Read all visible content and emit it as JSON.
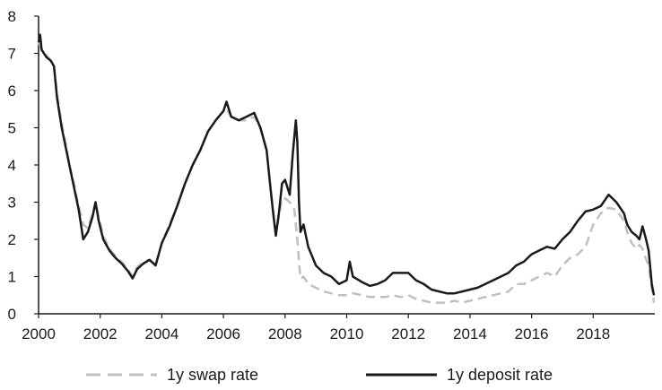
{
  "chart_data": {
    "type": "line",
    "title": "",
    "xlabel": "",
    "ylabel": "",
    "xlim": [
      2000,
      2020
    ],
    "ylim": [
      0,
      8
    ],
    "x_ticks": [
      2000,
      2002,
      2004,
      2006,
      2008,
      2010,
      2012,
      2014,
      2016,
      2018
    ],
    "y_ticks": [
      0,
      1,
      2,
      3,
      4,
      5,
      6,
      7,
      8
    ],
    "grid": false,
    "legend_position": "bottom",
    "series": [
      {
        "name": "1y swap rate",
        "color": "#c0c0c0",
        "style": "dashed",
        "x": [
          2000.0,
          2000.1,
          2000.25,
          2000.4,
          2000.5,
          2000.6,
          2000.75,
          2000.9,
          2001.0,
          2001.15,
          2001.3,
          2001.45,
          2001.6,
          2001.75,
          2001.85,
          2001.95,
          2002.1,
          2002.3,
          2002.5,
          2002.7,
          2002.9,
          2003.05,
          2003.2,
          2003.4,
          2003.6,
          2003.8,
          2004.0,
          2004.25,
          2004.5,
          2004.75,
          2005.0,
          2005.25,
          2005.5,
          2005.75,
          2006.0,
          2006.1,
          2006.25,
          2006.5,
          2006.75,
          2007.0,
          2007.2,
          2007.4,
          2007.5,
          2007.6,
          2007.7,
          2007.8,
          2007.9,
          2008.0,
          2008.15,
          2008.3,
          2008.4,
          2008.45,
          2008.5,
          2008.6,
          2008.75,
          2009.0,
          2009.25,
          2009.5,
          2009.75,
          2010.0,
          2010.2,
          2010.5,
          2010.75,
          2011.0,
          2011.25,
          2011.5,
          2011.75,
          2012.0,
          2012.25,
          2012.5,
          2012.75,
          2013.0,
          2013.25,
          2013.5,
          2013.75,
          2014.0,
          2014.25,
          2014.5,
          2014.75,
          2015.0,
          2015.25,
          2015.5,
          2015.75,
          2016.0,
          2016.25,
          2016.5,
          2016.75,
          2017.0,
          2017.25,
          2017.5,
          2017.75,
          2018.0,
          2018.25,
          2018.5,
          2018.75,
          2019.0,
          2019.1,
          2019.25,
          2019.4,
          2019.5,
          2019.6,
          2019.7,
          2019.8,
          2019.9,
          2019.97
        ],
        "y": [
          7.3,
          7.1,
          6.95,
          6.8,
          6.65,
          5.9,
          5.1,
          4.5,
          4.0,
          3.5,
          2.9,
          2.4,
          2.3,
          2.7,
          3.0,
          2.6,
          2.1,
          1.75,
          1.55,
          1.4,
          1.2,
          1.0,
          1.25,
          1.4,
          1.45,
          1.3,
          1.9,
          2.4,
          2.9,
          3.5,
          4.0,
          4.4,
          4.9,
          5.2,
          5.45,
          5.5,
          5.3,
          5.2,
          5.2,
          5.3,
          5.0,
          4.4,
          3.6,
          2.8,
          2.2,
          2.6,
          3.1,
          3.1,
          3.0,
          2.8,
          2.0,
          1.4,
          0.95,
          1.0,
          0.8,
          0.7,
          0.6,
          0.55,
          0.5,
          0.5,
          0.55,
          0.5,
          0.45,
          0.45,
          0.45,
          0.5,
          0.45,
          0.5,
          0.4,
          0.35,
          0.3,
          0.3,
          0.3,
          0.35,
          0.3,
          0.35,
          0.4,
          0.45,
          0.5,
          0.55,
          0.6,
          0.8,
          0.8,
          0.9,
          1.0,
          1.1,
          1.0,
          1.3,
          1.5,
          1.6,
          1.8,
          2.4,
          2.7,
          2.85,
          2.8,
          2.5,
          2.2,
          1.9,
          1.75,
          1.85,
          1.75,
          1.5,
          1.3,
          0.7,
          0.3
        ]
      },
      {
        "name": "1y deposit rate",
        "color": "#1a1a1a",
        "style": "solid",
        "x": [
          2000.0,
          2000.05,
          2000.1,
          2000.25,
          2000.4,
          2000.5,
          2000.6,
          2000.75,
          2000.9,
          2001.0,
          2001.15,
          2001.3,
          2001.45,
          2001.6,
          2001.75,
          2001.85,
          2001.95,
          2002.1,
          2002.3,
          2002.5,
          2002.7,
          2002.9,
          2003.05,
          2003.2,
          2003.4,
          2003.6,
          2003.8,
          2004.0,
          2004.25,
          2004.5,
          2004.75,
          2005.0,
          2005.25,
          2005.5,
          2005.75,
          2006.0,
          2006.1,
          2006.25,
          2006.5,
          2006.75,
          2007.0,
          2007.2,
          2007.4,
          2007.5,
          2007.6,
          2007.7,
          2007.8,
          2007.9,
          2008.0,
          2008.15,
          2008.25,
          2008.35,
          2008.4,
          2008.45,
          2008.5,
          2008.6,
          2008.75,
          2009.0,
          2009.25,
          2009.5,
          2009.75,
          2010.0,
          2010.1,
          2010.2,
          2010.5,
          2010.75,
          2011.0,
          2011.25,
          2011.5,
          2011.75,
          2012.0,
          2012.25,
          2012.5,
          2012.75,
          2013.0,
          2013.25,
          2013.5,
          2013.75,
          2014.0,
          2014.25,
          2014.5,
          2014.75,
          2015.0,
          2015.25,
          2015.5,
          2015.75,
          2016.0,
          2016.25,
          2016.5,
          2016.75,
          2017.0,
          2017.25,
          2017.5,
          2017.75,
          2018.0,
          2018.25,
          2018.5,
          2018.75,
          2019.0,
          2019.1,
          2019.25,
          2019.4,
          2019.5,
          2019.6,
          2019.7,
          2019.8,
          2019.9,
          2019.97
        ],
        "y": [
          7.3,
          7.5,
          7.1,
          6.9,
          6.8,
          6.65,
          5.8,
          5.0,
          4.4,
          4.0,
          3.4,
          2.8,
          2.0,
          2.2,
          2.6,
          3.0,
          2.5,
          2.0,
          1.7,
          1.5,
          1.35,
          1.15,
          0.95,
          1.2,
          1.35,
          1.45,
          1.3,
          1.9,
          2.35,
          2.9,
          3.5,
          4.0,
          4.4,
          4.9,
          5.2,
          5.45,
          5.7,
          5.3,
          5.2,
          5.3,
          5.4,
          5.0,
          4.4,
          3.6,
          2.8,
          2.1,
          2.7,
          3.5,
          3.6,
          3.2,
          4.3,
          5.2,
          4.6,
          3.0,
          2.2,
          2.4,
          1.8,
          1.3,
          1.1,
          1.0,
          0.8,
          0.9,
          1.4,
          1.0,
          0.85,
          0.75,
          0.8,
          0.9,
          1.1,
          1.1,
          1.1,
          0.9,
          0.8,
          0.65,
          0.6,
          0.55,
          0.55,
          0.6,
          0.65,
          0.7,
          0.8,
          0.9,
          1.0,
          1.1,
          1.3,
          1.4,
          1.6,
          1.7,
          1.8,
          1.75,
          2.0,
          2.2,
          2.5,
          2.75,
          2.8,
          2.9,
          3.2,
          3.0,
          2.7,
          2.4,
          2.2,
          2.1,
          2.0,
          2.35,
          2.05,
          1.7,
          0.8,
          0.5
        ]
      }
    ]
  }
}
